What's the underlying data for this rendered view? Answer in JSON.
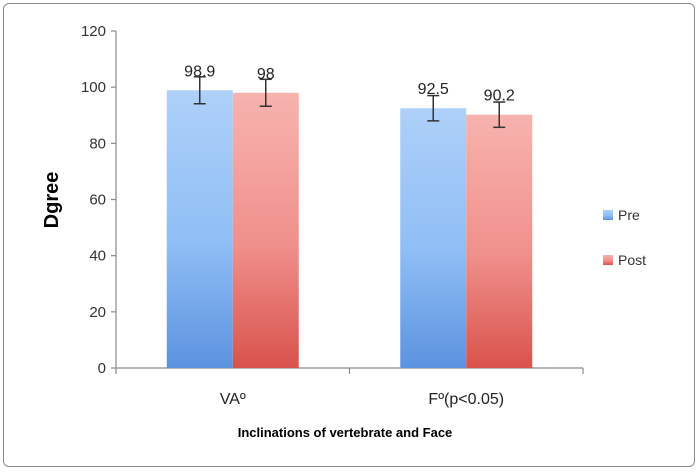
{
  "chart_data": {
    "type": "bar",
    "categories": [
      "VAº",
      "Fº(p<0.05)"
    ],
    "series": [
      {
        "name": "Pre",
        "values": [
          98.9,
          92.5
        ],
        "errors": [
          4.8,
          4.5
        ],
        "color": "#8fbef5",
        "color_light": "#aed0f9",
        "color_dark": "#5c93e0"
      },
      {
        "name": "Post",
        "values": [
          98,
          90.2
        ],
        "errors": [
          4.8,
          4.5
        ],
        "color": "#f0908c",
        "color_light": "#f7b3ae",
        "color_dark": "#d9534c"
      }
    ],
    "data_labels": [
      [
        "98.9",
        "92.5"
      ],
      [
        "98",
        "90.2"
      ]
    ],
    "xlabel": "Inclinations of vertebrate and Face",
    "ylabel": "Dgree",
    "ylim": [
      0,
      120
    ],
    "yticks": [
      0,
      20,
      40,
      60,
      80,
      100,
      120
    ],
    "grid": false,
    "legend": "right"
  }
}
